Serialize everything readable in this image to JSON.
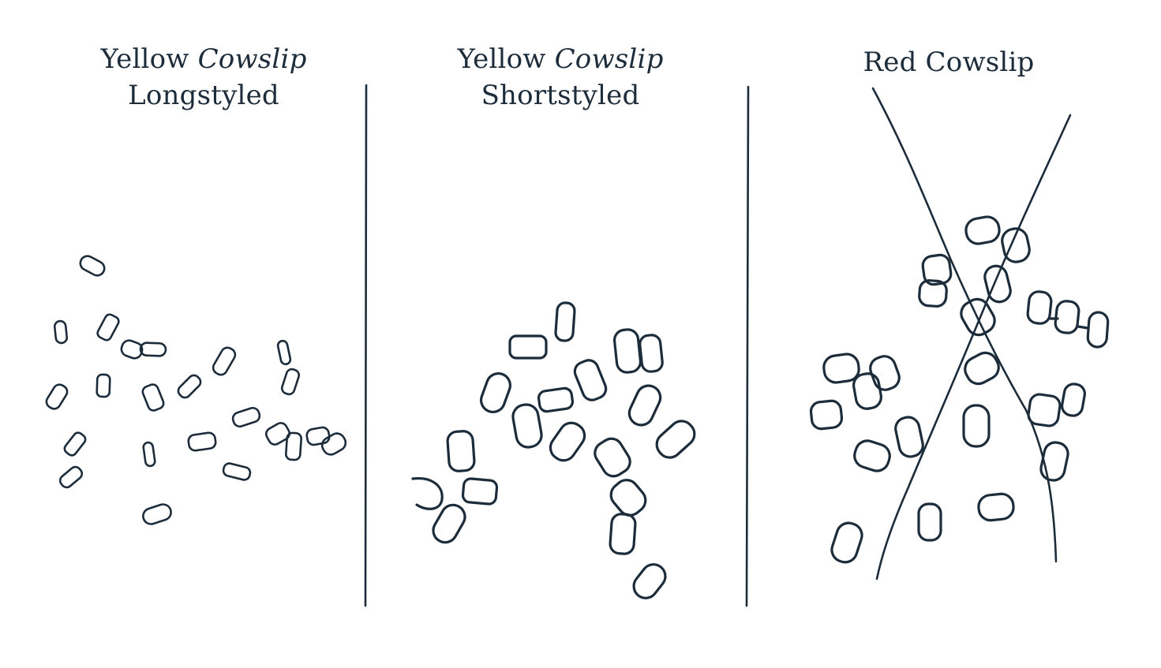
{
  "panels": [
    {
      "title_line1_prefix": "Yellow ",
      "title_line1_italic": "Cowslip",
      "title_line2": "Longstyled"
    },
    {
      "title_line1_prefix": "Yellow ",
      "title_line1_italic": "Cowslip",
      "title_line2": "Shortstyled"
    },
    {
      "title_line1": "Red Cowslip"
    }
  ],
  "colors": {
    "ink": "#1c2c3a",
    "background": "#ffffff"
  }
}
